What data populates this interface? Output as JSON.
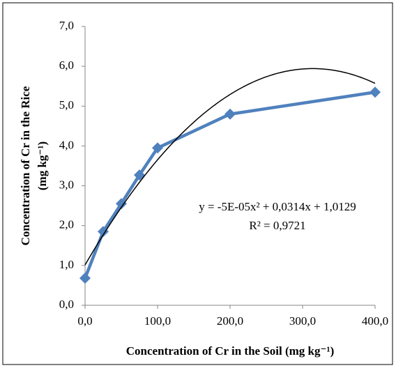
{
  "chart_data": {
    "type": "scatter",
    "x_label": "Concentration of Cr in the Soil (mg kg⁻¹)",
    "y_label": [
      "Concentration of Cr in the Rice",
      "(mg kg⁻¹)"
    ],
    "x": [
      0,
      25,
      50,
      75,
      100,
      200,
      400
    ],
    "series": [
      {
        "color": "#4f81bd",
        "values": [
          0.68,
          1.85,
          2.55,
          3.27,
          3.95,
          4.8,
          5.35
        ]
      }
    ],
    "trendline": {
      "coefficients": [
        -5e-05,
        0.0314,
        1.0129
      ],
      "color": "#000000",
      "equation": "y = -5E-05x² + 0,0314x + 1,0129",
      "r_squared": "R² = 0,9721"
    },
    "xlim": [
      0,
      400
    ],
    "xticks": [
      {
        "value": 0,
        "label": "0,0"
      },
      {
        "value": 100,
        "label": "100,0"
      },
      {
        "value": 200,
        "label": "200,0"
      },
      {
        "value": 300,
        "label": "300,0"
      },
      {
        "value": 400,
        "label": "400,0"
      }
    ],
    "ylim": [
      0,
      7
    ],
    "yticks": [
      {
        "value": 0,
        "label": "0,0"
      },
      {
        "value": 1,
        "label": "1,0"
      },
      {
        "value": 2,
        "label": "2,0"
      },
      {
        "value": 3,
        "label": "3,0"
      },
      {
        "value": 4,
        "label": "4,0"
      },
      {
        "value": 5,
        "label": "5,0"
      },
      {
        "value": 6,
        "label": "6,0"
      },
      {
        "value": 7,
        "label": "7,0"
      }
    ],
    "grid": false
  }
}
